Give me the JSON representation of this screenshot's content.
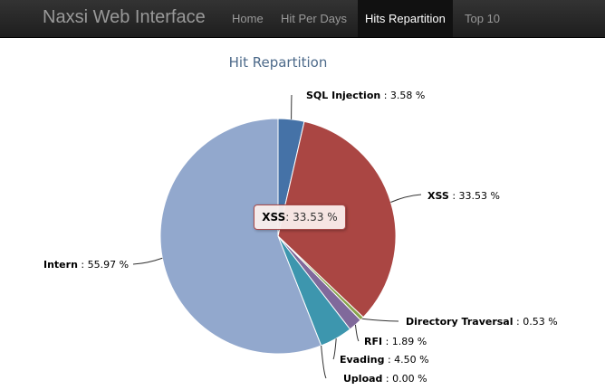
{
  "navbar": {
    "brand": "Naxsi Web Interface",
    "items": [
      {
        "label": "Home",
        "active": false
      },
      {
        "label": "Hit Per Days",
        "active": false
      },
      {
        "label": "Hits Repartition",
        "active": true
      },
      {
        "label": "Top 10",
        "active": false
      }
    ]
  },
  "tooltip": {
    "name": "XSS",
    "value": ": 33.53 %"
  },
  "chart_data": {
    "type": "pie",
    "title": "Hit Repartition",
    "categories": [
      "SQL Injection",
      "XSS",
      "Directory Traversal",
      "RFI",
      "Evading",
      "Upload",
      "Intern"
    ],
    "values": [
      3.58,
      33.53,
      0.53,
      1.89,
      4.5,
      0.0,
      55.97
    ],
    "unit": "%",
    "colors": [
      "#4572a7",
      "#aa4643",
      "#89a54e",
      "#80699b",
      "#3d96ae",
      "#db843d",
      "#92a8cd"
    ],
    "labels": [
      "SQL Injection : 3.58 %",
      "XSS : 33.53 %",
      "Directory Traversal : 0.53 %",
      "RFI : 1.89 %",
      "Evading : 4.50 %",
      "Upload : 0.00 %",
      "Intern : 55.97 %"
    ]
  }
}
